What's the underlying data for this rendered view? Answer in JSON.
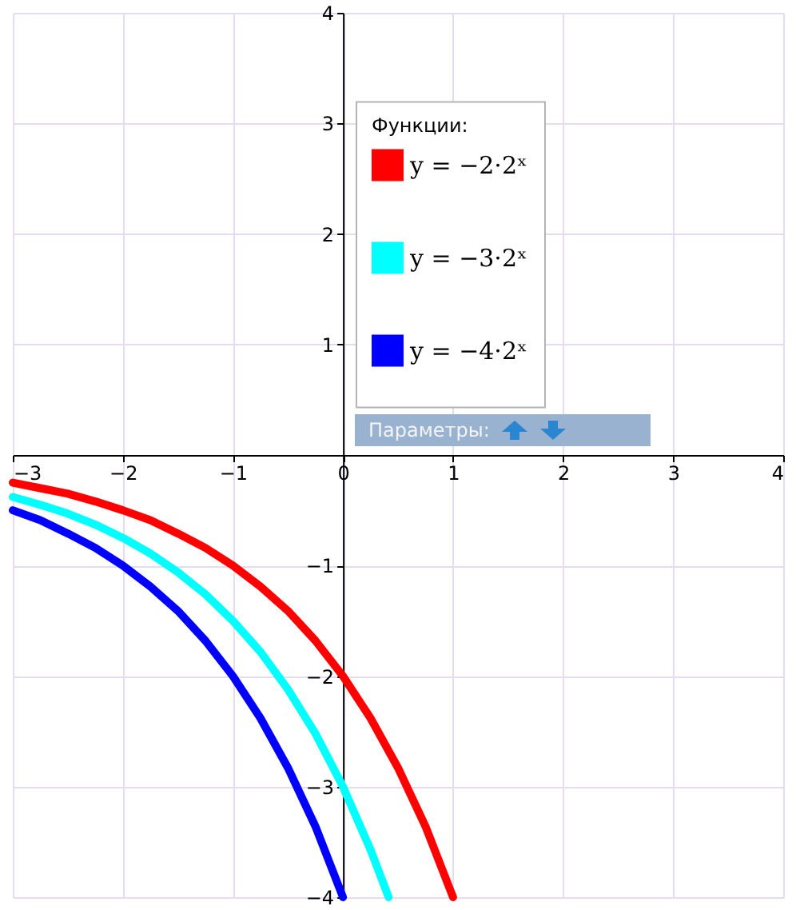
{
  "chart_data": {
    "type": "line",
    "xlim": [
      -3,
      4
    ],
    "ylim": [
      -4,
      4
    ],
    "xticks": [
      -3,
      -2,
      -1,
      0,
      1,
      2,
      3,
      4
    ],
    "yticks": [
      -4,
      -3,
      -2,
      -1,
      1,
      2,
      3,
      4
    ],
    "grid": true,
    "legend": "top right",
    "legend_title": "Функции:",
    "marker": "none",
    "line_style": "solid",
    "annotations": [
      "Параметры:"
    ],
    "series": [
      {
        "name": "y = −2·2ˣ",
        "color": "#ff0000",
        "x": [
          -3,
          -2.75,
          -2.5,
          -2.25,
          -2,
          -1.75,
          -1.5,
          -1.25,
          -1,
          -0.75,
          -0.5,
          -0.25,
          0,
          0.25,
          0.5,
          0.75,
          1
        ],
        "values": [
          -0.25,
          -0.3,
          -0.35,
          -0.42,
          -0.5,
          -0.59,
          -0.71,
          -0.84,
          -1,
          -1.19,
          -1.41,
          -1.68,
          -2,
          -2.38,
          -2.83,
          -3.36,
          -4
        ]
      },
      {
        "name": "y = −3·2ˣ",
        "color": "#00ffff",
        "x": [
          -3,
          -2.75,
          -2.5,
          -2.25,
          -2,
          -1.75,
          -1.5,
          -1.25,
          -1,
          -0.75,
          -0.5,
          -0.25,
          0,
          0.25,
          0.415
        ],
        "values": [
          -0.38,
          -0.45,
          -0.53,
          -0.63,
          -0.75,
          -0.89,
          -1.06,
          -1.26,
          -1.5,
          -1.78,
          -2.12,
          -2.52,
          -3,
          -3.57,
          -4
        ]
      },
      {
        "name": "y = −4·2ˣ",
        "color": "#0000ff",
        "x": [
          -3,
          -2.75,
          -2.5,
          -2.25,
          -2,
          -1.75,
          -1.5,
          -1.25,
          -1,
          -0.75,
          -0.5,
          -0.25,
          0
        ],
        "values": [
          -0.5,
          -0.59,
          -0.71,
          -0.84,
          -1,
          -1.19,
          -1.41,
          -1.68,
          -2,
          -2.38,
          -2.83,
          -3.36,
          -4
        ]
      }
    ]
  }
}
